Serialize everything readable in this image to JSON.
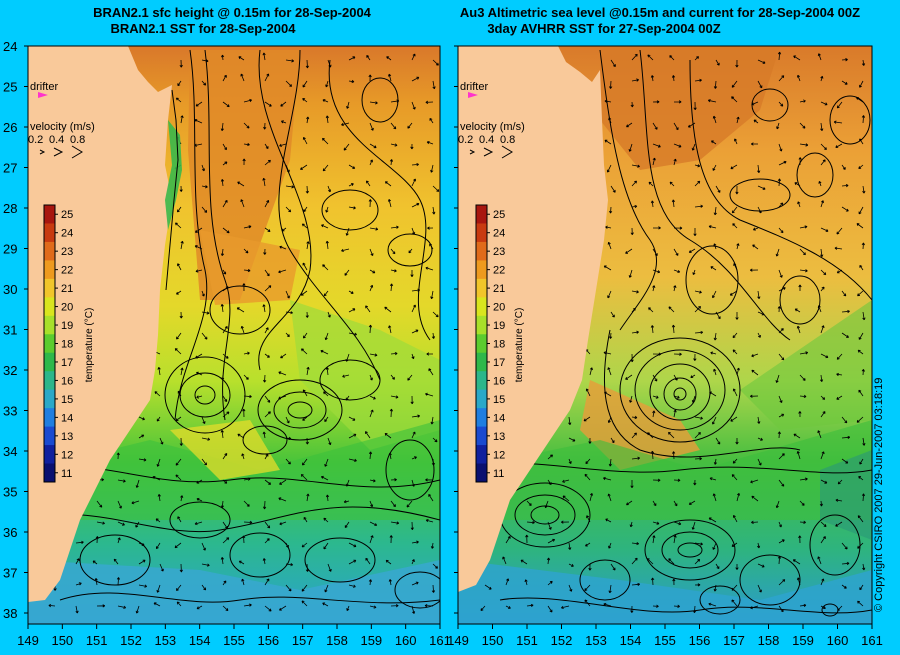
{
  "colors": {
    "background": "#00ccff",
    "land": "#f9c99a",
    "contour": "#000000",
    "drifter_marker": "#ff33cc"
  },
  "left_panel": {
    "title_line1": "BRAN2.1 sfc height @ 0.15m for 28-Sep-2004",
    "title_line2": "BRAN2.1 SST for 28-Sep-2004",
    "drifter_label": "drifter",
    "velocity_label": "velocity (m/s)",
    "velocity_scale": [
      "0.2",
      "0.4",
      "0.8"
    ]
  },
  "right_panel": {
    "title_line1": "Au3 Altimetric sea level  @0.15m and current for 28-Sep-2004 00Z",
    "title_line2": "3day AVHRR SST for 27-Sep-2004 00Z",
    "drifter_label": "drifter",
    "velocity_label": "velocity (m/s)",
    "velocity_scale": [
      "0.2",
      "0.4",
      "0.8"
    ]
  },
  "latitude_labels": [
    "24",
    "25",
    "26",
    "27",
    "28",
    "29",
    "30",
    "31",
    "32",
    "33",
    "34",
    "35",
    "36",
    "37",
    "38"
  ],
  "longitude_labels": [
    "149",
    "150",
    "151",
    "152",
    "153",
    "154",
    "155",
    "156",
    "157",
    "158",
    "159",
    "160",
    "161"
  ],
  "colorbar": {
    "title": "temperature (°C)",
    "ticks": [
      "25",
      "24",
      "23",
      "22",
      "21",
      "20",
      "19",
      "18",
      "17",
      "16",
      "15",
      "14",
      "13",
      "12",
      "11"
    ],
    "colors": [
      "#a8160f",
      "#c83a10",
      "#e06a1a",
      "#ee9a1e",
      "#f1c52a",
      "#d9e51e",
      "#a8e02a",
      "#5ccc2e",
      "#2fb84a",
      "#2cb68a",
      "#2aa8c8",
      "#1f7ee0",
      "#1a4ad0",
      "#10209e",
      "#0a1070"
    ]
  },
  "copyright": "© Copyright CSIRO 2007    29-Jun-2007 03:18:19"
}
